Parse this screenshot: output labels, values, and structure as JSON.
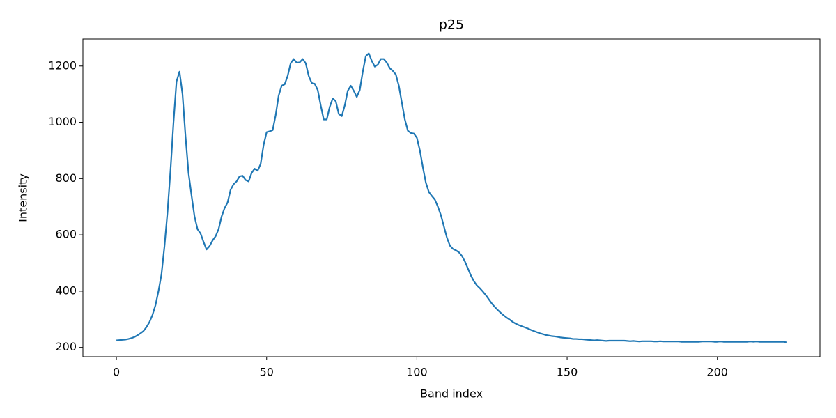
{
  "chart_data": {
    "type": "line",
    "title": "p25",
    "x_label": "Band index",
    "y_label": "Intensity",
    "color": "#1f77b4",
    "grid": false,
    "x": [
      0,
      1,
      2,
      3,
      4,
      5,
      6,
      7,
      8,
      9,
      10,
      11,
      12,
      13,
      14,
      15,
      16,
      17,
      18,
      19,
      20,
      21,
      22,
      23,
      24,
      25,
      26,
      27,
      28,
      29,
      30,
      31,
      32,
      33,
      34,
      35,
      36,
      37,
      38,
      39,
      40,
      41,
      42,
      43,
      44,
      45,
      46,
      47,
      48,
      49,
      50,
      51,
      52,
      53,
      54,
      55,
      56,
      57,
      58,
      59,
      60,
      61,
      62,
      63,
      64,
      65,
      66,
      67,
      68,
      69,
      70,
      71,
      72,
      73,
      74,
      75,
      76,
      77,
      78,
      79,
      80,
      81,
      82,
      83,
      84,
      85,
      86,
      87,
      88,
      89,
      90,
      91,
      92,
      93,
      94,
      95,
      96,
      97,
      98,
      99,
      100,
      101,
      102,
      103,
      104,
      105,
      106,
      107,
      108,
      109,
      110,
      111,
      112,
      113,
      114,
      115,
      116,
      117,
      118,
      119,
      120,
      121,
      122,
      123,
      124,
      125,
      126,
      127,
      128,
      129,
      130,
      131,
      132,
      133,
      134,
      135,
      136,
      137,
      138,
      139,
      140,
      141,
      142,
      143,
      144,
      145,
      146,
      147,
      148,
      149,
      150,
      151,
      152,
      153,
      154,
      155,
      156,
      157,
      158,
      159,
      160,
      161,
      162,
      163,
      164,
      165,
      166,
      167,
      168,
      169,
      170,
      171,
      172,
      173,
      174,
      175,
      176,
      177,
      178,
      179,
      180,
      181,
      182,
      183,
      184,
      185,
      186,
      187,
      188,
      189,
      190,
      191,
      192,
      193,
      194,
      195,
      196,
      197,
      198,
      199,
      200,
      201,
      202,
      203,
      204,
      205,
      206,
      207,
      208,
      209,
      210,
      211,
      212,
      213,
      214,
      215,
      216,
      217,
      218,
      219,
      220,
      221,
      222,
      223
    ],
    "values": [
      225,
      226,
      227,
      228,
      230,
      233,
      237,
      243,
      250,
      258,
      272,
      290,
      315,
      350,
      400,
      460,
      560,
      680,
      830,
      1000,
      1145,
      1180,
      1100,
      950,
      820,
      740,
      665,
      620,
      605,
      575,
      548,
      560,
      580,
      595,
      620,
      665,
      695,
      715,
      760,
      780,
      790,
      808,
      810,
      795,
      790,
      820,
      835,
      828,
      852,
      920,
      965,
      968,
      972,
      1025,
      1095,
      1130,
      1135,
      1165,
      1210,
      1225,
      1212,
      1213,
      1225,
      1210,
      1165,
      1140,
      1137,
      1115,
      1060,
      1010,
      1010,
      1055,
      1085,
      1075,
      1030,
      1022,
      1060,
      1112,
      1130,
      1112,
      1090,
      1115,
      1180,
      1235,
      1245,
      1218,
      1198,
      1205,
      1225,
      1225,
      1212,
      1192,
      1183,
      1170,
      1130,
      1070,
      1010,
      970,
      962,
      960,
      945,
      900,
      840,
      785,
      752,
      738,
      725,
      700,
      670,
      630,
      590,
      562,
      550,
      545,
      538,
      525,
      505,
      480,
      455,
      435,
      420,
      410,
      398,
      385,
      370,
      355,
      343,
      332,
      322,
      313,
      305,
      298,
      290,
      284,
      279,
      275,
      271,
      267,
      262,
      258,
      254,
      250,
      247,
      244,
      242,
      240,
      239,
      237,
      235,
      234,
      233,
      232,
      230,
      230,
      229,
      229,
      228,
      227,
      226,
      225,
      226,
      225,
      224,
      223,
      224,
      224,
      224,
      224,
      224,
      224,
      223,
      222,
      223,
      222,
      221,
      222,
      222,
      222,
      222,
      221,
      221,
      222,
      221,
      221,
      221,
      221,
      221,
      221,
      220,
      220,
      220,
      220,
      220,
      220,
      220,
      221,
      221,
      221,
      221,
      220,
      220,
      221,
      220,
      220,
      220,
      220,
      220,
      220,
      220,
      220,
      220,
      221,
      220,
      221,
      220,
      220,
      220,
      220,
      220,
      220,
      220,
      220,
      220,
      218
    ],
    "xlim": [
      -11.15,
      234.15
    ],
    "xticks": [
      0,
      50,
      100,
      150,
      200
    ],
    "ylim": [
      167,
      1296
    ],
    "yticks": [
      200,
      400,
      600,
      800,
      1000,
      1200
    ]
  }
}
